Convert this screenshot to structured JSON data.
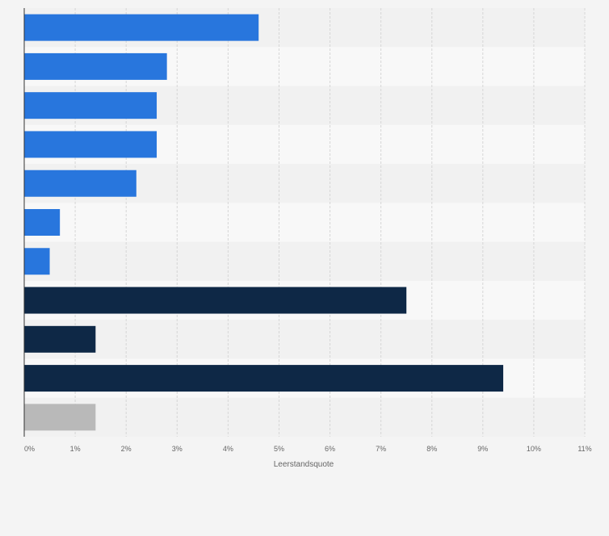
{
  "chart_data": {
    "type": "bar",
    "orientation": "horizontal",
    "xlabel": "Leerstandsquote",
    "xlim": [
      0,
      11
    ],
    "x_ticks": [
      "0%",
      "1%",
      "2%",
      "3%",
      "4%",
      "5%",
      "6%",
      "7%",
      "8%",
      "9%",
      "10%",
      "11%"
    ],
    "grid": true,
    "values": [
      4.6,
      2.8,
      2.6,
      2.6,
      2.2,
      0.7,
      0.5,
      7.5,
      1.4,
      9.4,
      1.4
    ],
    "colors": [
      "#2876dd",
      "#2876dd",
      "#2876dd",
      "#2876dd",
      "#2876dd",
      "#2876dd",
      "#2876dd",
      "#0e2846",
      "#0e2846",
      "#0e2846",
      "#b9b9b9"
    ]
  }
}
